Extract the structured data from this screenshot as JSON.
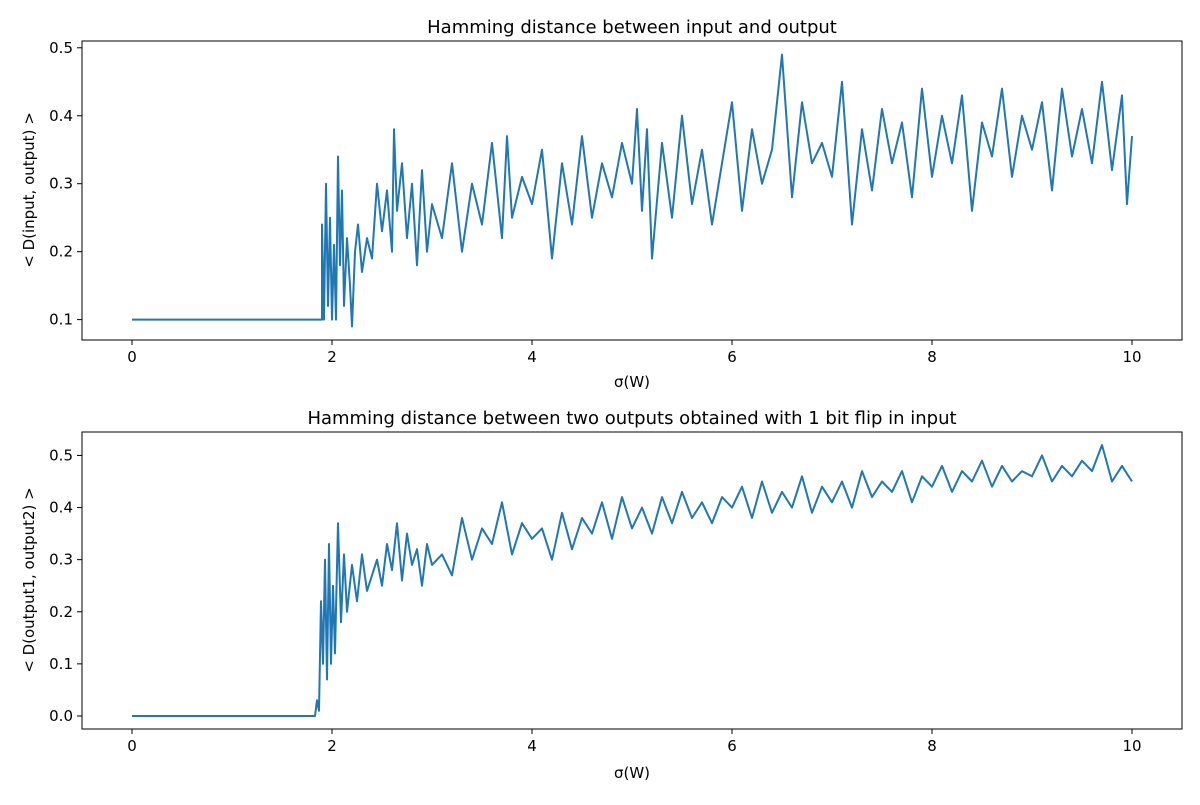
{
  "chart_data": [
    {
      "type": "line",
      "title": "Hamming distance between input and output",
      "xlabel": "σ(W)",
      "ylabel": "< D(input, output) >",
      "xlim": [
        -0.5,
        10.5
      ],
      "ylim": [
        0.07,
        0.51
      ],
      "xticks": [
        0,
        2,
        4,
        6,
        8,
        10
      ],
      "yticks": [
        0.1,
        0.2,
        0.3,
        0.4,
        0.5
      ],
      "ytick_labels": [
        "0.1",
        "0.2",
        "0.3",
        "0.4",
        "0.5"
      ],
      "grid": false,
      "series": [
        {
          "color": "#1f77b4",
          "x": [
            0,
            1.9,
            1.9,
            1.92,
            1.94,
            1.96,
            1.98,
            2.0,
            2.02,
            2.04,
            2.06,
            2.08,
            2.1,
            2.12,
            2.15,
            2.18,
            2.2,
            2.23,
            2.26,
            2.3,
            2.35,
            2.4,
            2.45,
            2.5,
            2.55,
            2.6,
            2.62,
            2.65,
            2.7,
            2.75,
            2.8,
            2.85,
            2.9,
            2.95,
            3.0,
            3.1,
            3.2,
            3.3,
            3.4,
            3.5,
            3.6,
            3.7,
            3.75,
            3.8,
            3.9,
            4.0,
            4.1,
            4.2,
            4.3,
            4.4,
            4.5,
            4.6,
            4.7,
            4.8,
            4.9,
            5.0,
            5.05,
            5.1,
            5.15,
            5.2,
            5.3,
            5.4,
            5.5,
            5.6,
            5.7,
            5.8,
            5.9,
            6.0,
            6.1,
            6.2,
            6.3,
            6.4,
            6.5,
            6.6,
            6.7,
            6.8,
            6.9,
            7.0,
            7.1,
            7.2,
            7.3,
            7.4,
            7.5,
            7.6,
            7.7,
            7.8,
            7.9,
            8.0,
            8.1,
            8.2,
            8.3,
            8.4,
            8.5,
            8.6,
            8.7,
            8.8,
            8.9,
            9.0,
            9.1,
            9.2,
            9.3,
            9.4,
            9.5,
            9.6,
            9.7,
            9.8,
            9.9,
            9.95,
            10.0
          ],
          "y": [
            0.1,
            0.1,
            0.24,
            0.1,
            0.3,
            0.12,
            0.25,
            0.1,
            0.21,
            0.1,
            0.34,
            0.18,
            0.29,
            0.12,
            0.22,
            0.15,
            0.09,
            0.2,
            0.24,
            0.17,
            0.22,
            0.19,
            0.3,
            0.23,
            0.29,
            0.2,
            0.38,
            0.26,
            0.33,
            0.22,
            0.3,
            0.18,
            0.32,
            0.2,
            0.27,
            0.22,
            0.33,
            0.2,
            0.3,
            0.24,
            0.36,
            0.22,
            0.37,
            0.25,
            0.31,
            0.27,
            0.35,
            0.19,
            0.33,
            0.24,
            0.37,
            0.25,
            0.33,
            0.28,
            0.36,
            0.3,
            0.41,
            0.26,
            0.38,
            0.19,
            0.36,
            0.25,
            0.4,
            0.27,
            0.35,
            0.24,
            0.33,
            0.42,
            0.26,
            0.38,
            0.3,
            0.35,
            0.49,
            0.28,
            0.42,
            0.33,
            0.36,
            0.31,
            0.45,
            0.24,
            0.38,
            0.29,
            0.41,
            0.33,
            0.39,
            0.28,
            0.44,
            0.31,
            0.4,
            0.33,
            0.43,
            0.26,
            0.39,
            0.34,
            0.44,
            0.31,
            0.4,
            0.35,
            0.42,
            0.29,
            0.44,
            0.34,
            0.41,
            0.33,
            0.45,
            0.32,
            0.43,
            0.27,
            0.37
          ]
        }
      ]
    },
    {
      "type": "line",
      "title": "Hamming distance between two outputs obtained with 1 bit flip in input",
      "xlabel": "σ(W)",
      "ylabel": "< D(output1, output2) >",
      "xlim": [
        -0.5,
        10.5
      ],
      "ylim": [
        -0.025,
        0.545
      ],
      "xticks": [
        0,
        2,
        4,
        6,
        8,
        10
      ],
      "yticks": [
        0.0,
        0.1,
        0.2,
        0.3,
        0.4,
        0.5
      ],
      "ytick_labels": [
        "0.0",
        "0.1",
        "0.2",
        "0.3",
        "0.4",
        "0.5"
      ],
      "grid": false,
      "series": [
        {
          "color": "#1f77b4",
          "x": [
            0,
            1.83,
            1.85,
            1.87,
            1.89,
            1.91,
            1.93,
            1.95,
            1.97,
            1.99,
            2.01,
            2.03,
            2.06,
            2.09,
            2.12,
            2.15,
            2.2,
            2.25,
            2.3,
            2.35,
            2.4,
            2.45,
            2.5,
            2.55,
            2.6,
            2.65,
            2.7,
            2.75,
            2.8,
            2.85,
            2.9,
            2.95,
            3.0,
            3.1,
            3.2,
            3.3,
            3.4,
            3.5,
            3.6,
            3.7,
            3.8,
            3.9,
            4.0,
            4.1,
            4.2,
            4.3,
            4.4,
            4.5,
            4.6,
            4.7,
            4.8,
            4.9,
            5.0,
            5.1,
            5.2,
            5.3,
            5.4,
            5.5,
            5.6,
            5.7,
            5.8,
            5.9,
            6.0,
            6.1,
            6.2,
            6.3,
            6.4,
            6.5,
            6.6,
            6.7,
            6.8,
            6.9,
            7.0,
            7.1,
            7.2,
            7.3,
            7.4,
            7.5,
            7.6,
            7.7,
            7.8,
            7.9,
            8.0,
            8.1,
            8.2,
            8.3,
            8.4,
            8.5,
            8.6,
            8.7,
            8.8,
            8.9,
            9.0,
            9.1,
            9.2,
            9.3,
            9.4,
            9.5,
            9.6,
            9.7,
            9.8,
            9.9,
            10.0
          ],
          "y": [
            0.0,
            0.0,
            0.03,
            0.01,
            0.22,
            0.1,
            0.3,
            0.07,
            0.33,
            0.1,
            0.25,
            0.12,
            0.37,
            0.18,
            0.31,
            0.2,
            0.29,
            0.22,
            0.31,
            0.24,
            0.27,
            0.3,
            0.25,
            0.33,
            0.28,
            0.37,
            0.26,
            0.35,
            0.29,
            0.32,
            0.25,
            0.33,
            0.29,
            0.31,
            0.27,
            0.38,
            0.3,
            0.36,
            0.33,
            0.41,
            0.31,
            0.37,
            0.34,
            0.36,
            0.3,
            0.39,
            0.32,
            0.38,
            0.35,
            0.41,
            0.34,
            0.42,
            0.36,
            0.4,
            0.35,
            0.42,
            0.37,
            0.43,
            0.38,
            0.41,
            0.37,
            0.42,
            0.4,
            0.44,
            0.38,
            0.45,
            0.39,
            0.43,
            0.4,
            0.46,
            0.39,
            0.44,
            0.41,
            0.45,
            0.4,
            0.47,
            0.42,
            0.45,
            0.43,
            0.47,
            0.41,
            0.46,
            0.44,
            0.48,
            0.43,
            0.47,
            0.45,
            0.49,
            0.44,
            0.48,
            0.45,
            0.47,
            0.46,
            0.5,
            0.45,
            0.48,
            0.46,
            0.49,
            0.47,
            0.52,
            0.45,
            0.48,
            0.45
          ]
        }
      ]
    }
  ]
}
